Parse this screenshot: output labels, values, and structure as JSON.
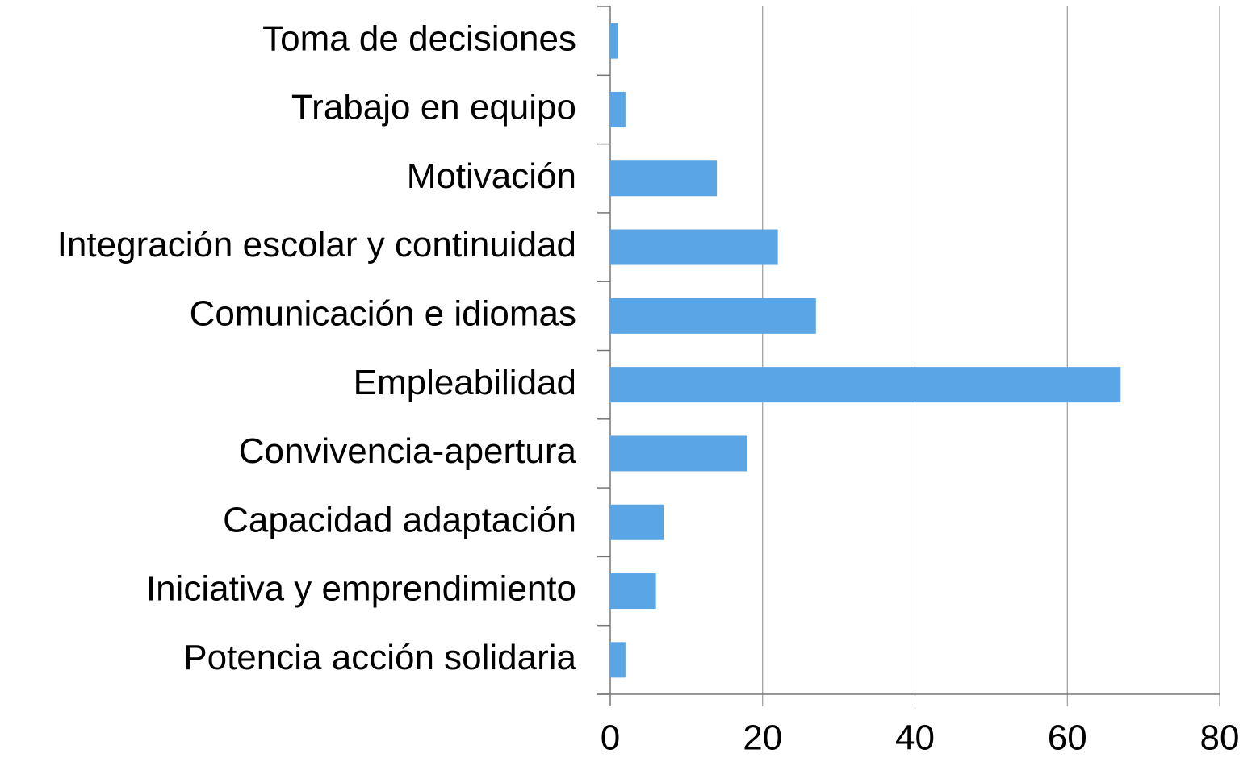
{
  "chart_data": {
    "type": "bar",
    "orientation": "horizontal",
    "categories": [
      "Toma de decisiones",
      "Trabajo en equipo",
      "Motivación",
      "Integración escolar y continuidad",
      "Comunicación e idiomas",
      "Empleabilidad",
      "Convivencia-apertura",
      "Capacidad adaptación",
      "Iniciativa y emprendimiento",
      "Potencia acción solidaria"
    ],
    "values": [
      1,
      2,
      14,
      22,
      27,
      67,
      18,
      7,
      6,
      2
    ],
    "color": "#5aa5e6",
    "xlim": [
      0,
      80
    ],
    "xticks": [
      0,
      20,
      40,
      60,
      80
    ],
    "grid": true
  }
}
